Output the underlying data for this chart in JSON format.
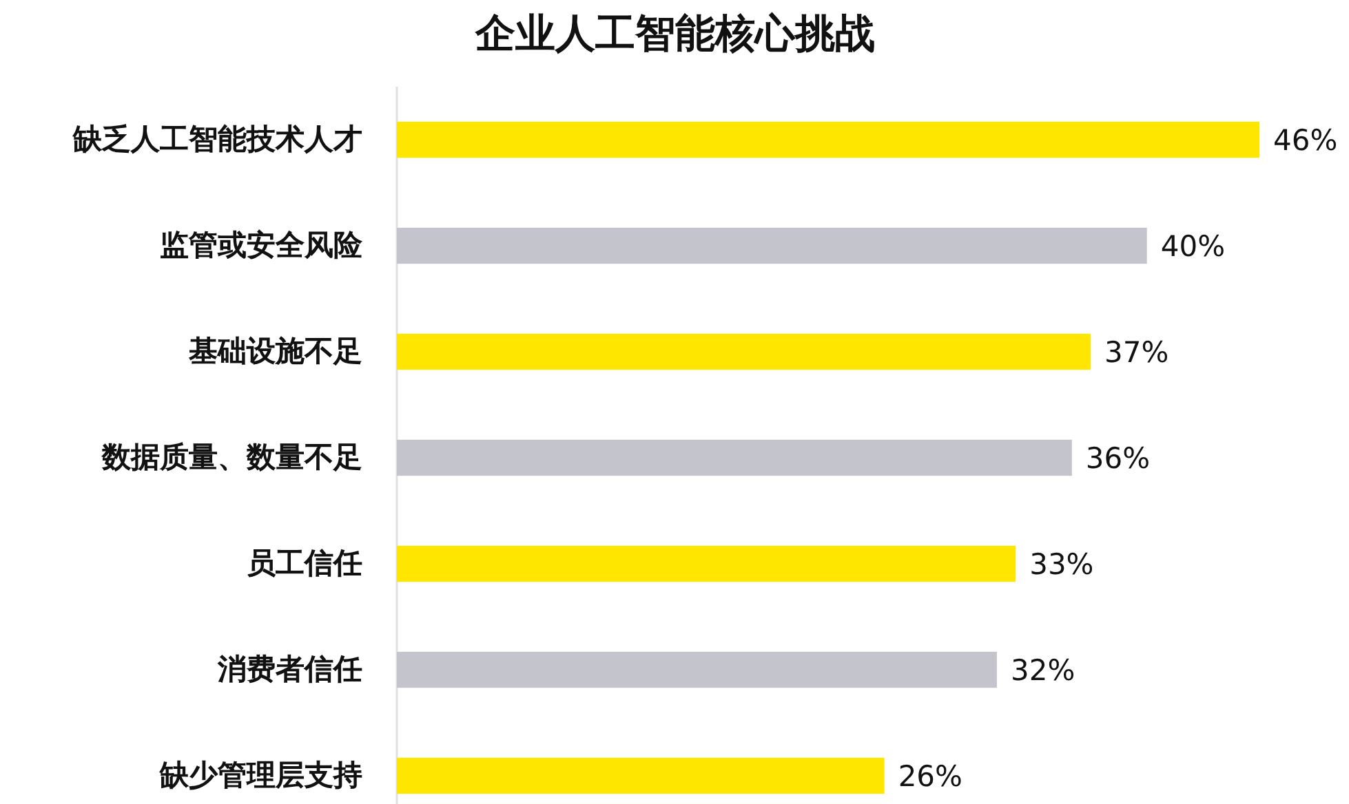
{
  "chart_data": {
    "type": "bar",
    "orientation": "horizontal",
    "title": "企业人工智能核心挑战",
    "categories": [
      "缺乏人工智能技术人才",
      "监管或安全风险",
      "基础设施不足",
      "数据质量、数量不足",
      "员工信任",
      "消费者信任",
      "缺少管理层支持"
    ],
    "values": [
      46,
      40,
      37,
      36,
      33,
      32,
      26
    ],
    "value_labels": [
      "46%",
      "40%",
      "37%",
      "36%",
      "33%",
      "32%",
      "26%"
    ],
    "colors": [
      "#ffe600",
      "#c4c4cd",
      "#ffe600",
      "#c4c4cd",
      "#ffe600",
      "#c4c4cd",
      "#ffe600"
    ]
  }
}
